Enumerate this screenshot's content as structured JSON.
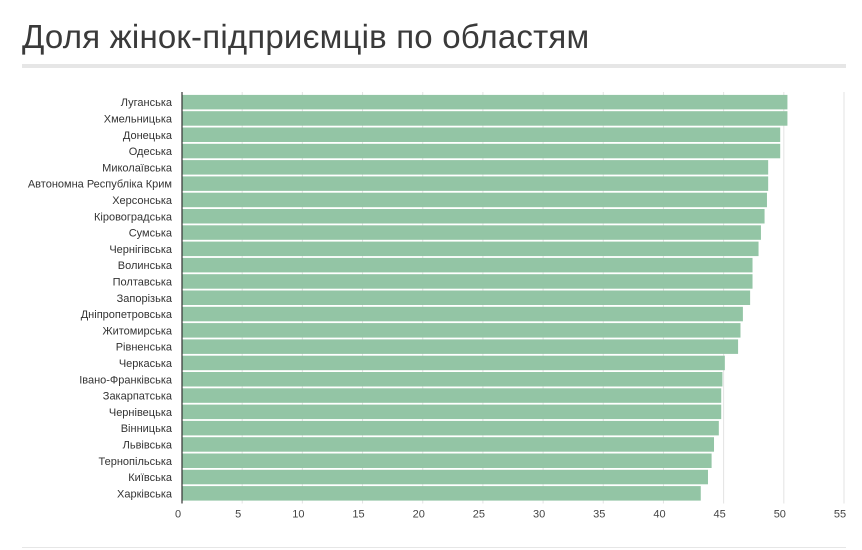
{
  "page": {
    "title": "Доля жінок-підприємців по областям"
  },
  "chart_data": {
    "type": "bar",
    "orientation": "horizontal",
    "title": "Доля жінок-підприємців по областям",
    "xlabel": "",
    "ylabel": "",
    "xlim": [
      0,
      55
    ],
    "x_ticks": [
      "0",
      "5",
      "10",
      "15",
      "20",
      "25",
      "30",
      "35",
      "40",
      "45",
      "50",
      "55"
    ],
    "grid": true,
    "bar_color": "#93c5a5",
    "categories": [
      "Луганська",
      "Хмельницька",
      "Донецька",
      "Одеська",
      "Миколаївська",
      "Автономна Республіка Крим",
      "Херсонська",
      "Кіровоградська",
      "Сумська",
      "Чернігівська",
      "Волинська",
      "Полтавська",
      "Запорізька",
      "Дніпропетровська",
      "Житомирська",
      "Рівненська",
      "Черкаська",
      "Івано-Франківська",
      "Закарпатська",
      "Чернівецька",
      "Вінницька",
      "Львівська",
      "Тернопільська",
      "Київська",
      "Харківська"
    ],
    "values": [
      50.3,
      50.3,
      49.7,
      49.7,
      48.7,
      48.7,
      48.6,
      48.4,
      48.1,
      47.9,
      47.4,
      47.4,
      47.2,
      46.6,
      46.4,
      46.2,
      45.1,
      44.9,
      44.8,
      44.8,
      44.6,
      44.2,
      44.0,
      43.7,
      43.1
    ]
  }
}
